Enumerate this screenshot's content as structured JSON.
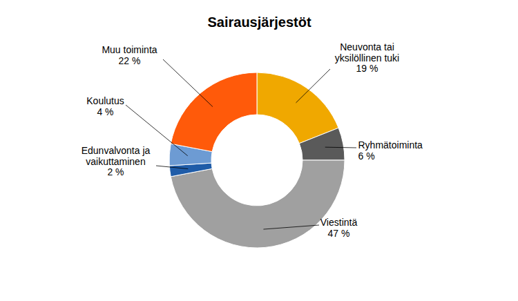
{
  "chart_data": {
    "type": "donut",
    "title": "Sairausjärjestöt",
    "categories": [
      "Neuvonta tai yksilöllinen tuki",
      "Ryhmätoiminta",
      "Viestintä",
      "Edunvalvonta ja vaikuttaminen",
      "Koulutus",
      "Muu toiminta"
    ],
    "values": [
      19,
      6,
      47,
      2,
      4,
      22
    ],
    "value_labels": [
      "19 %",
      "6 %",
      "47 %",
      "2 %",
      "4 %",
      "22 %"
    ],
    "colors": [
      "#f0a800",
      "#5a5a5a",
      "#a0a0a0",
      "#1f5ca8",
      "#6d9bd3",
      "#ff5a0a"
    ],
    "data_labels": true
  }
}
